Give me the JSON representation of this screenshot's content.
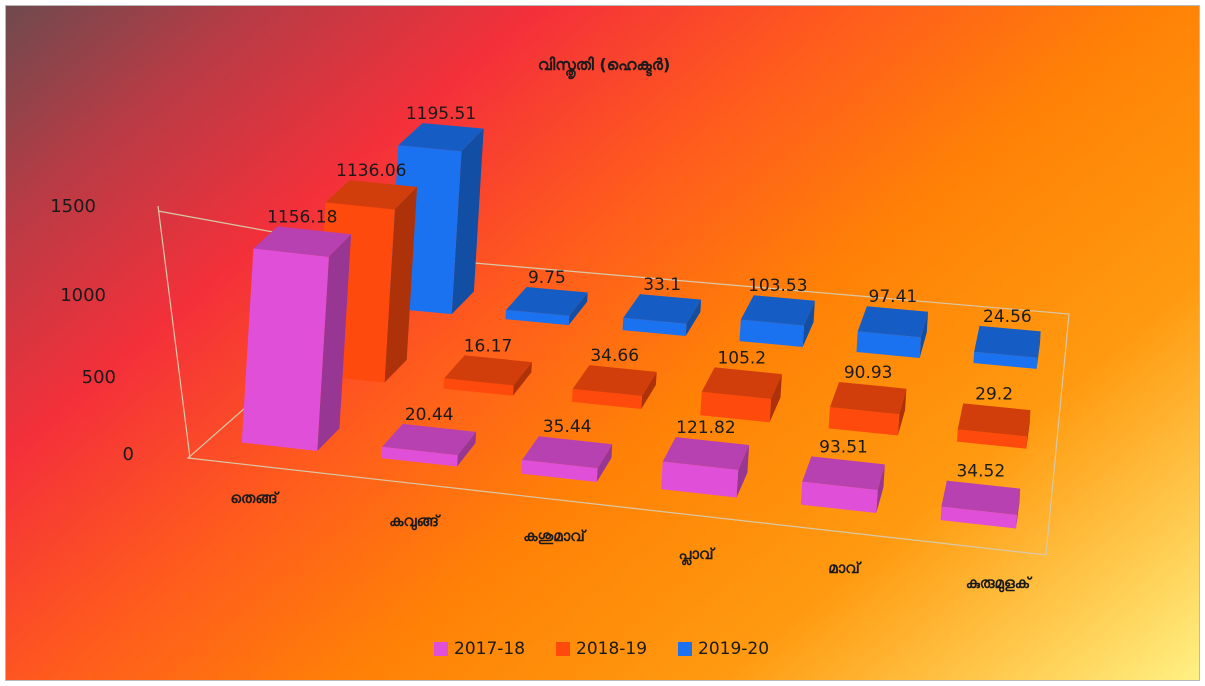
{
  "chart_data": {
    "type": "bar",
    "title": "വിസ്തൃതി (ഹെക്ടർ)",
    "categories": [
      "തെങ്ങ്",
      "കവുങ്ങ്",
      "കശുമാവ്",
      "പ്ലാവ്",
      "മാവ്",
      "കുരുമുളക്"
    ],
    "series": [
      {
        "name": "2017-18",
        "values": [
          1156.18,
          20.44,
          35.44,
          121.82,
          93.51,
          34.52
        ],
        "color": "#e04fd8"
      },
      {
        "name": "2018-19",
        "values": [
          1136.06,
          16.17,
          34.66,
          105.2,
          90.93,
          29.2
        ],
        "color": "#ff4a0e"
      },
      {
        "name": "2019-20",
        "values": [
          1195.51,
          9.75,
          33.1,
          103.53,
          97.41,
          24.56
        ],
        "color": "#1a72f0"
      }
    ],
    "yticks": [
      "0",
      "500",
      "1000",
      "1500"
    ],
    "ylim": [
      0,
      1500
    ],
    "legend_position": "bottom",
    "grid": false
  }
}
